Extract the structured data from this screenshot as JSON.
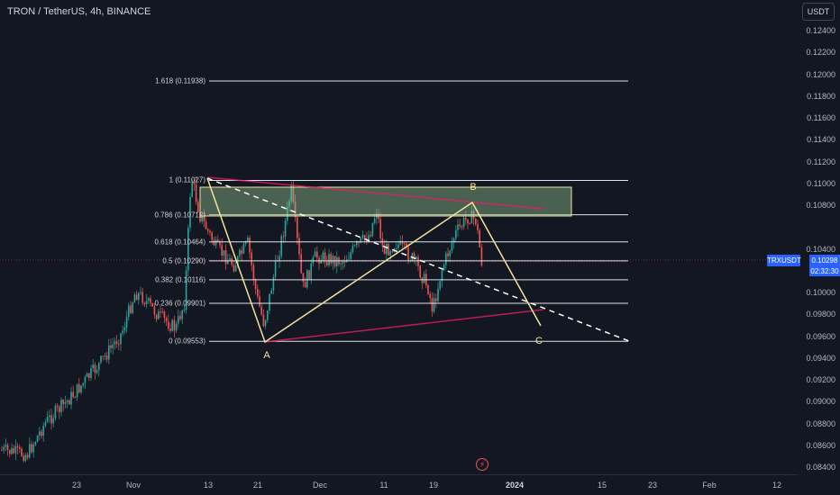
{
  "header": {
    "symbol_title": "TRON / TetherUS, 4h, BINANCE"
  },
  "currency_button": "USDT",
  "price_axis": {
    "ticks": [
      "0.12400",
      "0.12200",
      "0.12000",
      "0.11800",
      "0.11600",
      "0.11400",
      "0.11200",
      "0.11000",
      "0.10800",
      "0.10400",
      "0.10000",
      "0.09800",
      "0.09600",
      "0.09400",
      "0.09200",
      "0.09000",
      "0.08800",
      "0.08600",
      "0.08400"
    ]
  },
  "time_axis": {
    "ticks": [
      {
        "label": "23",
        "bold": false
      },
      {
        "label": "Nov",
        "bold": false
      },
      {
        "label": "13",
        "bold": false
      },
      {
        "label": "21",
        "bold": false
      },
      {
        "label": "Dec",
        "bold": false
      },
      {
        "label": "11",
        "bold": false
      },
      {
        "label": "19",
        "bold": false
      },
      {
        "label": "2024",
        "bold": true
      },
      {
        "label": "15",
        "bold": false
      },
      {
        "label": "23",
        "bold": false
      },
      {
        "label": "Feb",
        "bold": false
      },
      {
        "label": "12",
        "bold": false
      }
    ]
  },
  "price_badge": {
    "symbol": "TRXUSDT",
    "price": "0.10298",
    "countdown": "02:32:30"
  },
  "fibonacci": {
    "levels": [
      {
        "label": "1.618 (0.11938)",
        "price": 0.11938
      },
      {
        "label": "1 (0.11027)",
        "price": 0.11027
      },
      {
        "label": "0.786 (0.10712)",
        "price": 0.10712
      },
      {
        "label": "0.618 (0.10464)",
        "price": 0.10464
      },
      {
        "label": "0.5 (0.10290)",
        "price": 0.1029
      },
      {
        "label": "0.382 (0.10116)",
        "price": 0.10116
      },
      {
        "label": "0.236 (0.09901)",
        "price": 0.09901
      },
      {
        "label": "0 (0.09553)",
        "price": 0.09553
      }
    ]
  },
  "waves": {
    "a": "A",
    "b": "B",
    "c": "C"
  },
  "colors": {
    "background": "#131722",
    "up": "#26a69a",
    "down": "#ef5350",
    "wave": "#f3e49b",
    "trendline": "#c2185b",
    "zone": "#8fbc8f",
    "badge": "#2962ff"
  },
  "icons": {
    "flash": "flash-icon"
  }
}
